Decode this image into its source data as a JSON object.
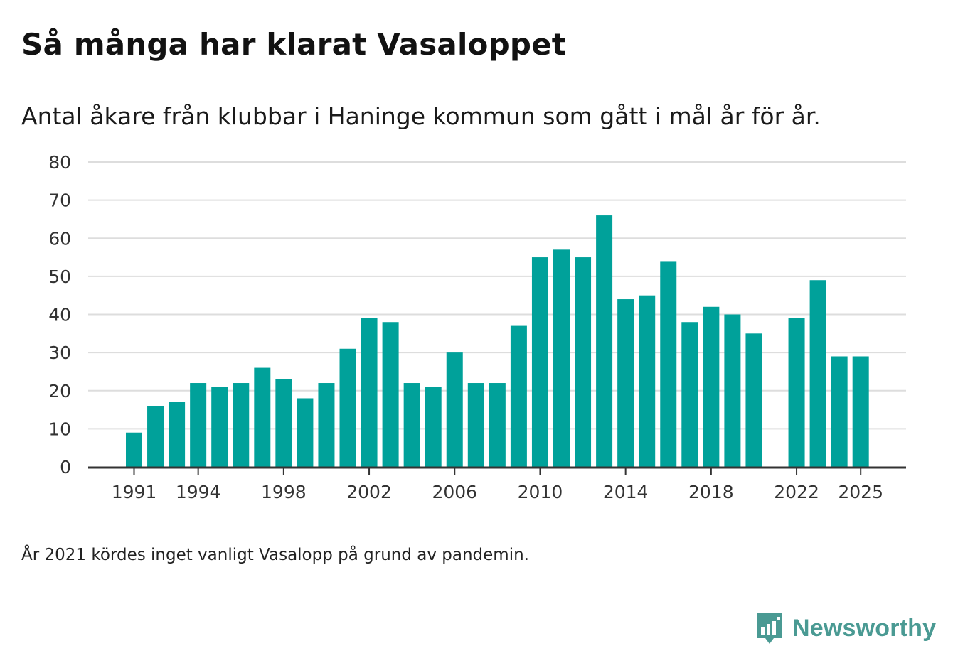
{
  "title": "Så många har klarat Vasaloppet",
  "subtitle": "Antal åkare från klubbar i Haninge kommun som gått i mål år för år.",
  "footnote": "År 2021 kördes inget vanligt Vasalopp på grund av pandemin.",
  "brand": {
    "name": "Newsworthy",
    "icon": "bar-chart-speech-bubble-icon",
    "color": "#4a9a93"
  },
  "colors": {
    "bar": "#00a19a",
    "grid": "#dddddd",
    "axis": "#333333"
  },
  "chart_data": {
    "type": "bar",
    "title": "Så många har klarat Vasaloppet",
    "xlabel": "",
    "ylabel": "",
    "ylim": [
      0,
      80
    ],
    "yticks": [
      0,
      10,
      20,
      30,
      40,
      50,
      60,
      70,
      80
    ],
    "xticks": [
      1991,
      1994,
      1998,
      2002,
      2006,
      2010,
      2014,
      2018,
      2022,
      2025
    ],
    "grid": true,
    "x": [
      1991,
      1992,
      1993,
      1994,
      1995,
      1996,
      1997,
      1998,
      1999,
      2000,
      2001,
      2002,
      2003,
      2004,
      2005,
      2006,
      2007,
      2008,
      2009,
      2010,
      2011,
      2012,
      2013,
      2014,
      2015,
      2016,
      2017,
      2018,
      2019,
      2020,
      2021,
      2022,
      2023,
      2024,
      2025
    ],
    "values": [
      9,
      16,
      17,
      22,
      21,
      22,
      26,
      23,
      18,
      22,
      31,
      39,
      38,
      22,
      21,
      30,
      22,
      22,
      37,
      55,
      57,
      55,
      66,
      44,
      45,
      54,
      38,
      42,
      40,
      35,
      null,
      39,
      49,
      29,
      29
    ]
  }
}
